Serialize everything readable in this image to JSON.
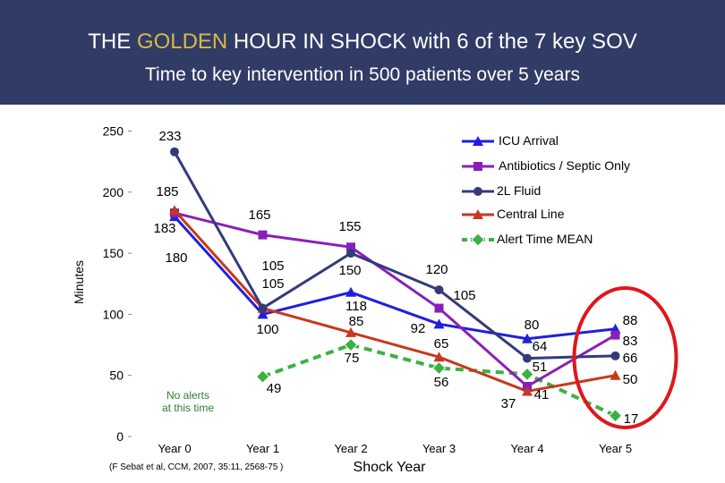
{
  "header": {
    "title_pre": "THE ",
    "title_highlight": "GOLDEN",
    "title_post": " HOUR IN SHOCK with 6 of the 7 key SOV",
    "subtitle": "Time to key intervention in 500 patients over 5 years"
  },
  "citation": "(F Sebat et al, CCM, 2007, 35:11, 2568-75 )",
  "no_alerts_note": [
    "No alerts",
    "at this time"
  ],
  "chart_data": {
    "type": "line",
    "title": "Time to key intervention in 500 patients over 5 years",
    "xlabel": "Shock Year",
    "ylabel": "Minutes",
    "ylim": [
      0,
      250
    ],
    "yticks": [
      0,
      50,
      100,
      150,
      200,
      250
    ],
    "categories": [
      "Year 0",
      "Year 1",
      "Year 2",
      "Year 3",
      "Year 4",
      "Year 5"
    ],
    "series": [
      {
        "name": "ICU Arrival",
        "color": "#1f1fe0",
        "marker": "triangle",
        "dash": false,
        "values": [
          180,
          100,
          118,
          92,
          80,
          88
        ]
      },
      {
        "name": "Antibiotics / Septic Only",
        "color": "#8a1fb8",
        "marker": "square",
        "dash": false,
        "values": [
          183,
          165,
          155,
          105,
          41,
          83
        ]
      },
      {
        "name": "2L Fluid",
        "color": "#353a7a",
        "marker": "circle",
        "dash": false,
        "values": [
          233,
          105,
          150,
          120,
          64,
          66
        ]
      },
      {
        "name": "Central Line",
        "color": "#c8381c",
        "marker": "triangle",
        "dash": false,
        "values": [
          185,
          105,
          85,
          65,
          37,
          50
        ]
      },
      {
        "name": "Alert Time MEAN",
        "color": "#3cb043",
        "marker": "diamond",
        "dash": true,
        "values": [
          null,
          49,
          75,
          56,
          51,
          17
        ]
      }
    ],
    "data_labels": [
      {
        "category": "Year 0",
        "text": "233",
        "value": 233
      },
      {
        "category": "Year 0",
        "text": "185",
        "value": 185
      },
      {
        "category": "Year 0",
        "text": "183",
        "value": 183
      },
      {
        "category": "Year 0",
        "text": "180",
        "value": 180
      },
      {
        "category": "Year 1",
        "text": "165",
        "value": 165
      },
      {
        "category": "Year 1",
        "text": "105",
        "value": 105
      },
      {
        "category": "Year 1",
        "text": "105",
        "value": 105
      },
      {
        "category": "Year 1",
        "text": "100",
        "value": 100
      },
      {
        "category": "Year 1",
        "text": "49",
        "value": 49
      },
      {
        "category": "Year 2",
        "text": "155",
        "value": 155
      },
      {
        "category": "Year 2",
        "text": "150",
        "value": 150
      },
      {
        "category": "Year 2",
        "text": "118",
        "value": 118
      },
      {
        "category": "Year 2",
        "text": "85",
        "value": 85
      },
      {
        "category": "Year 2",
        "text": "75",
        "value": 75
      },
      {
        "category": "Year 3",
        "text": "120",
        "value": 120
      },
      {
        "category": "Year 3",
        "text": "105",
        "value": 105
      },
      {
        "category": "Year 3",
        "text": "92",
        "value": 92
      },
      {
        "category": "Year 3",
        "text": "65",
        "value": 65
      },
      {
        "category": "Year 3",
        "text": "56",
        "value": 56
      },
      {
        "category": "Year 4",
        "text": "80",
        "value": 80
      },
      {
        "category": "Year 4",
        "text": "64",
        "value": 64
      },
      {
        "category": "Year 4",
        "text": "51",
        "value": 51
      },
      {
        "category": "Year 4",
        "text": "41",
        "value": 41
      },
      {
        "category": "Year 4",
        "text": "37",
        "value": 37
      },
      {
        "category": "Year 5",
        "text": "88",
        "value": 88
      },
      {
        "category": "Year 5",
        "text": "83",
        "value": 83
      },
      {
        "category": "Year 5",
        "text": "66",
        "value": 66
      },
      {
        "category": "Year 5",
        "text": "50",
        "value": 50
      },
      {
        "category": "Year 5",
        "text": "17",
        "value": 17
      }
    ],
    "highlight": {
      "category": "Year 5",
      "shape": "ellipse",
      "color": "#e0161c"
    },
    "legend_position": "top-right",
    "grid": false
  }
}
